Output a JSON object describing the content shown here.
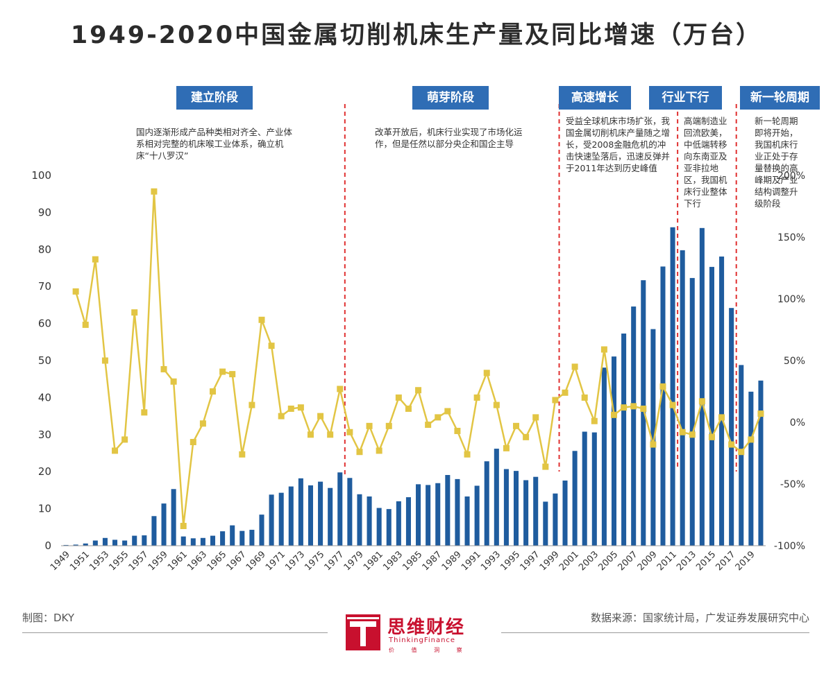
{
  "title": "1949-2020中国金属切削机床生产量及同比增速（万台）",
  "stages": [
    {
      "label": "建立阶段",
      "description": "国内逐渐形成产品种类相对齐全、产业体系相对完整的机床喉工业体系，确立机床“十八罗汉”"
    },
    {
      "label": "萌芽阶段",
      "description": "改革开放后，机床行业实现了市场化运作，但是任然以部分央企和国企主导"
    },
    {
      "label": "高速增长",
      "description": "受益全球机床市场扩张，我国金属切削机床产量随之增长，受2008金融危机的冲击快速坠落后，迅速反弹并于2011年达到历史峰值"
    },
    {
      "label": "行业下行",
      "description": "高端制造业回流欧美，中低端转移向东南亚及亚非拉地区，我国机床行业整体下行"
    },
    {
      "label": "新一轮周期",
      "description": "新一轮周期即将开始，我国机床行业正处于存量替换的高峰期及产业结构调整升级阶段"
    }
  ],
  "footer": {
    "left": "制图：DKY",
    "right": "数据来源：国家统计局，广发证券发展研究中心",
    "logo_name": "思维财经",
    "logo_sub": "ThinkingFinance",
    "logo_sub2": "价 值 洞 察"
  },
  "colors": {
    "bar": "#1f5c9e",
    "line": "#e2c544",
    "marker": "#e2c544",
    "divider": "#e03030",
    "stage": "#2f6db5"
  },
  "chart_data": {
    "type": "bar+line",
    "title": "1949-2020中国金属切削机床生产量及同比增速（万台）",
    "years": [
      1949,
      1950,
      1951,
      1952,
      1953,
      1954,
      1955,
      1956,
      1957,
      1958,
      1959,
      1960,
      1961,
      1962,
      1963,
      1964,
      1965,
      1966,
      1967,
      1968,
      1969,
      1970,
      1971,
      1972,
      1973,
      1974,
      1975,
      1976,
      1977,
      1978,
      1979,
      1980,
      1981,
      1982,
      1983,
      1984,
      1985,
      1986,
      1987,
      1988,
      1989,
      1990,
      1991,
      1992,
      1993,
      1994,
      1995,
      1996,
      1997,
      1998,
      1999,
      2000,
      2001,
      2002,
      2003,
      2004,
      2005,
      2006,
      2007,
      2008,
      2009,
      2010,
      2011,
      2012,
      2013,
      2014,
      2015,
      2016,
      2017,
      2018,
      2019,
      2020
    ],
    "x_tick_labels": [
      "1949",
      "1951",
      "1953",
      "1955",
      "1957",
      "1959",
      "1961",
      "1963",
      "1965",
      "1967",
      "1969",
      "1971",
      "1973",
      "1975",
      "1977",
      "1979",
      "1981",
      "1983",
      "1985",
      "1987",
      "1989",
      "1991",
      "1993",
      "1995",
      "1997",
      "1999",
      "2001",
      "2003",
      "2005",
      "2007",
      "2009",
      "2011",
      "2013",
      "2015",
      "2017",
      "2019"
    ],
    "series": [
      {
        "name": "生产量（万台）",
        "type": "bar",
        "axis": "left",
        "values": [
          0.2,
          0.3,
          0.6,
          1.4,
          2.1,
          1.6,
          1.4,
          2.7,
          2.8,
          8.0,
          11.4,
          15.3,
          2.5,
          2.0,
          2.1,
          2.7,
          3.9,
          5.5,
          4.0,
          4.3,
          8.4,
          13.8,
          14.3,
          16.0,
          18.2,
          16.3,
          17.3,
          15.6,
          19.8,
          18.3,
          13.9,
          13.3,
          10.2,
          9.9,
          12.0,
          13.1,
          16.6,
          16.4,
          16.9,
          19.1,
          18.0,
          13.3,
          16.2,
          22.8,
          26.2,
          20.7,
          20.2,
          17.7,
          18.6,
          11.9,
          14.1,
          17.6,
          25.6,
          30.8,
          30.6,
          48.1,
          51.1,
          57.3,
          64.6,
          71.7,
          58.5,
          75.4,
          86.0,
          79.8,
          72.3,
          85.8,
          75.3,
          78.1,
          64.2,
          48.8,
          41.6,
          44.6
        ]
      },
      {
        "name": "同比增速",
        "type": "line",
        "axis": "right",
        "values": [
          106,
          79,
          132,
          50,
          -23,
          -14,
          89,
          8,
          187,
          43,
          33,
          -84,
          -16,
          -1,
          25,
          41,
          39,
          -26,
          14,
          83,
          62,
          5,
          11,
          12,
          -10,
          5,
          -10,
          27,
          -8,
          -24,
          -3,
          -23,
          -3,
          20,
          11,
          26,
          -2,
          4,
          9,
          -7,
          -26,
          20,
          40,
          14,
          -21,
          -3,
          -12,
          4,
          -36,
          18,
          24,
          45,
          20,
          1,
          59,
          6,
          12,
          13,
          11,
          -18,
          29,
          14,
          -8,
          -10,
          17,
          -12,
          4,
          -18,
          -24,
          -14,
          7
        ]
      }
    ],
    "y_left": {
      "min": 0,
      "max": 100,
      "step": 10,
      "tick_labels": [
        "0",
        "10",
        "20",
        "30",
        "40",
        "50",
        "60",
        "70",
        "80",
        "90",
        "100"
      ]
    },
    "y_right": {
      "min": -100,
      "max": 200,
      "step": 50,
      "tick_labels": [
        "-100%",
        "-50%",
        "0%",
        "50%",
        "100%",
        "150%",
        "200%"
      ]
    },
    "stage_divider_years": [
      1977.5,
      1999.4,
      2011.5,
      2017.5
    ]
  }
}
